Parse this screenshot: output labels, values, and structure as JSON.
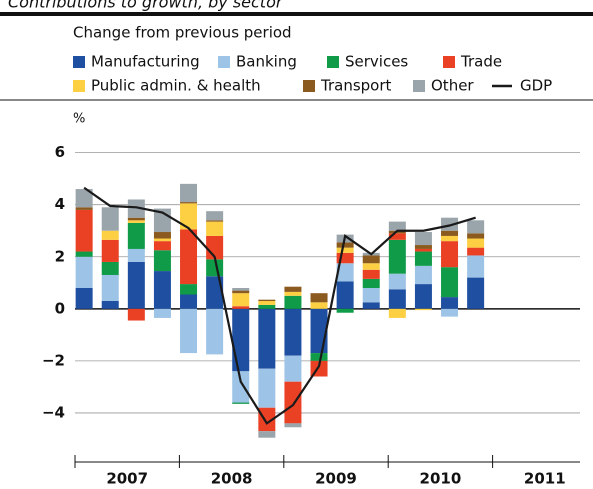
{
  "chart_data": {
    "type": "stacked_bar_line",
    "title": "Contributions to growth, by sector",
    "subtitle": "Change from previous period",
    "y_label": "%",
    "categories": [
      null,
      null,
      null,
      null,
      null,
      null,
      null,
      null,
      null,
      null,
      null,
      null,
      null,
      null,
      null,
      null
    ],
    "year_labels": [
      "2007",
      "2008",
      "2009",
      "2010",
      "2011"
    ],
    "ylim": [
      -5.5,
      6.6
    ],
    "yticks": [
      6,
      4,
      2,
      0,
      {
        "value": -2,
        "label": "−2"
      },
      {
        "value": -4,
        "label": "−4"
      }
    ],
    "grid": true,
    "series": [
      {
        "name": "Manufacturing",
        "color": "#1f4fa0",
        "values": [
          0.8,
          0.3,
          1.8,
          1.45,
          0.55,
          1.25,
          -2.4,
          -2.3,
          -1.8,
          -1.7,
          1.05,
          0.25,
          0.75,
          0.95,
          0.45,
          1.2
        ]
      },
      {
        "name": "Banking",
        "color": "#9dc3e6",
        "values": [
          1.2,
          1.0,
          0.5,
          -0.35,
          -1.7,
          -1.75,
          -1.2,
          -1.5,
          -1.0,
          0,
          0.7,
          0.55,
          0.6,
          0.7,
          -0.3,
          0.85
        ]
      },
      {
        "name": "Services",
        "color": "#0f9b48",
        "values": [
          0.2,
          0.5,
          1.0,
          0.8,
          0.4,
          0.65,
          -0.05,
          0.15,
          0.5,
          -0.3,
          -0.15,
          0.35,
          1.3,
          0.55,
          1.15,
          0
        ]
      },
      {
        "name": "Trade",
        "color": "#ea4125",
        "values": [
          1.6,
          0.85,
          -0.45,
          0.35,
          2.1,
          0.9,
          0.1,
          -0.9,
          -1.6,
          -0.6,
          0.4,
          0.35,
          0.25,
          0.1,
          1.0,
          0.3
        ]
      },
      {
        "name": "Public admin. & health",
        "color": "#fcd042",
        "values": [
          0,
          0.35,
          0.1,
          0.1,
          1.0,
          0.55,
          0.5,
          0.15,
          0.15,
          0.25,
          0.2,
          0.25,
          -0.35,
          -0.05,
          0.2,
          0.35
        ]
      },
      {
        "name": "Transport",
        "color": "#8b5a1e",
        "values": [
          0.1,
          0,
          0.1,
          0.25,
          0.05,
          0.05,
          0.1,
          0.05,
          0.2,
          0.35,
          0.2,
          0.3,
          0.1,
          0.15,
          0.2,
          0.2
        ]
      },
      {
        "name": "Other",
        "color": "#9aa4ab",
        "values": [
          0.7,
          0.9,
          0.7,
          0.9,
          0.7,
          0.35,
          0.1,
          -0.25,
          -0.15,
          0,
          0.3,
          0.1,
          0.35,
          0.5,
          0.5,
          0.5
        ]
      }
    ],
    "line": {
      "name": "GDP",
      "color": "#1a1a1a",
      "values": [
        4.65,
        3.95,
        3.9,
        3.7,
        3.1,
        2.0,
        -2.8,
        -4.4,
        -3.7,
        -2.2,
        2.8,
        2.1,
        3.0,
        3.0,
        3.2,
        3.5
      ]
    }
  }
}
